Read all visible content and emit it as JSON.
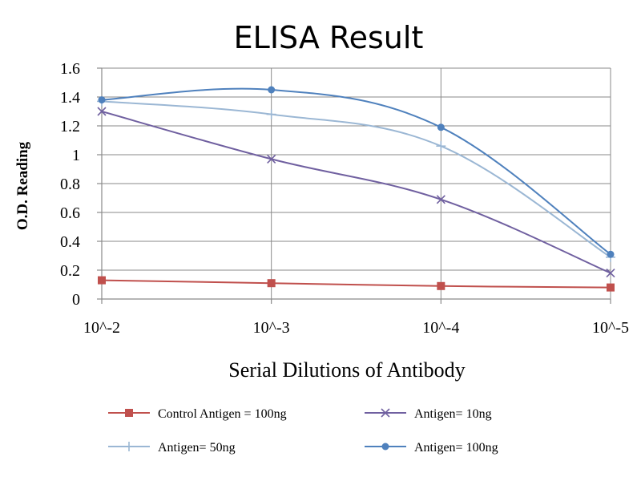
{
  "chart_data": {
    "type": "line",
    "title": "ELISA Result",
    "xlabel": "Serial Dilutions  of Antibody",
    "ylabel": "O.D. Reading",
    "categories": [
      "10^-2",
      "10^-3",
      "10^-4",
      "10^-5"
    ],
    "ylim": [
      0,
      1.6
    ],
    "yticks": [
      "0",
      "0.2",
      "0.4",
      "0.6",
      "0.8",
      "1",
      "1.2",
      "1.4",
      "1.6"
    ],
    "grid": true,
    "legend_position": "bottom",
    "series": [
      {
        "name": "Control Antigen = 100ng",
        "values": [
          0.13,
          0.11,
          0.09,
          0.08
        ],
        "color": "#c0504d",
        "marker": "square"
      },
      {
        "name": "Antigen= 10ng",
        "values": [
          1.3,
          0.97,
          0.69,
          0.18
        ],
        "color": "#7060a0",
        "marker": "x"
      },
      {
        "name": "Antigen= 50ng",
        "values": [
          1.37,
          1.28,
          1.06,
          0.29
        ],
        "color": "#9bb7d4",
        "marker": "plus"
      },
      {
        "name": "Antigen= 100ng",
        "values": [
          1.38,
          1.45,
          1.19,
          0.31
        ],
        "color": "#4f81bd",
        "marker": "dot"
      }
    ]
  }
}
